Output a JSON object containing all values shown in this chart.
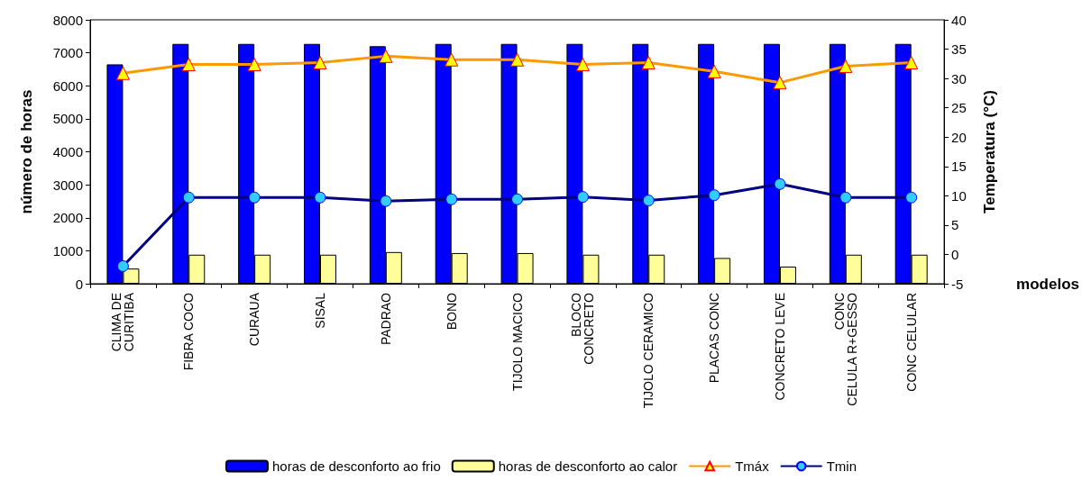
{
  "chart_data": {
    "type": "bar",
    "xlabel": "modelos",
    "ylabel": "número de horas",
    "y2label": "Temperatura (°C)",
    "categories": [
      "CLIMA DE\nCURITIBA",
      "FIBRA COCO",
      "CURAUA",
      "SISAL",
      "PADRAO",
      "BONO",
      "TIJOLO MACICO",
      "BLOCO\nCONCRETO",
      "TIJOLO CERAMICO",
      "PLACAS CONC",
      "CONCRETO LEVE",
      "CONC\nCELULA R+GESSO",
      "CONC CELULAR"
    ],
    "series": [
      {
        "name": "horas de desconforto ao frio",
        "color": "#0000ff",
        "values": [
          6650,
          7270,
          7270,
          7270,
          7200,
          7270,
          7270,
          7270,
          7270,
          7270,
          7270,
          7270,
          7270
        ]
      },
      {
        "name": "horas de desconforto ao calor",
        "color": "#ffff99",
        "values": [
          460,
          880,
          880,
          880,
          960,
          930,
          930,
          880,
          880,
          780,
          520,
          880,
          880
        ]
      },
      {
        "name": "Tmáx",
        "type": "line",
        "axis": "y2",
        "marker": "triangle",
        "color": "#ff9900",
        "values": [
          30.9,
          32.4,
          32.4,
          32.7,
          33.8,
          33.2,
          33.2,
          32.4,
          32.7,
          31.2,
          29.3,
          32.1,
          32.7
        ]
      },
      {
        "name": "Tmin",
        "type": "line",
        "axis": "y2",
        "marker": "circle",
        "color": "#000080",
        "values": [
          -2.0,
          9.7,
          9.7,
          9.7,
          9.1,
          9.4,
          9.4,
          9.8,
          9.2,
          10.1,
          12.0,
          9.7,
          9.7
        ]
      }
    ],
    "ylim": [
      0,
      8000
    ],
    "yticks": [
      0,
      1000,
      2000,
      3000,
      4000,
      5000,
      6000,
      7000,
      8000
    ],
    "y2lim": [
      -5,
      40
    ],
    "y2ticks": [
      -5,
      0,
      5,
      10,
      15,
      20,
      25,
      30,
      35,
      40
    ],
    "grid": false,
    "legend": "bottom"
  }
}
